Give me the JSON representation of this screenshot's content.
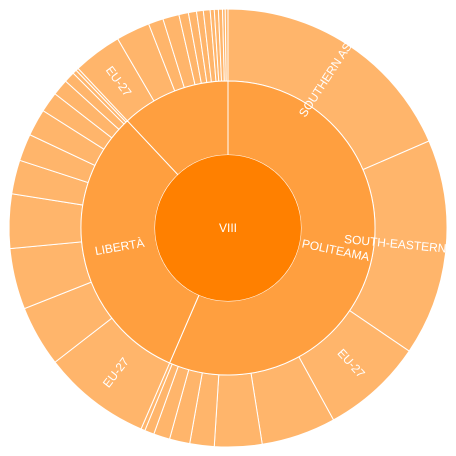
{
  "chart_data": {
    "type": "sunburst",
    "colors": {
      "root": "#ff8000",
      "level1": "#ff9f3f",
      "level2": "#ffb56b"
    },
    "root": {
      "label": "VIII",
      "value": 100,
      "children": [
        {
          "label": "POLITEAMA",
          "value": 56.5,
          "children": [
            {
              "label": "SOUTHERN ASIA",
              "value": 18.5
            },
            {
              "label": "SOUTH-EASTERN ASIA",
              "value": 16.0
            },
            {
              "label": "EU-27",
              "value": 7.5
            },
            {
              "label": "",
              "value": 5.5
            },
            {
              "label": "",
              "value": 3.5
            },
            {
              "label": "",
              "value": 1.8
            },
            {
              "label": "",
              "value": 1.5
            },
            {
              "label": "",
              "value": 1.2
            },
            {
              "label": "",
              "value": 0.7
            },
            {
              "label": "",
              "value": 0.3
            }
          ]
        },
        {
          "label": "LIBERTÀ",
          "value": 31.5,
          "children": [
            {
              "label": "EU-27",
              "value": 8.0
            },
            {
              "label": "",
              "value": 4.5
            },
            {
              "label": "",
              "value": 4.5
            },
            {
              "label": "",
              "value": 4.0
            },
            {
              "label": "",
              "value": 2.5
            },
            {
              "label": "",
              "value": 2.0
            },
            {
              "label": "",
              "value": 2.0
            },
            {
              "label": "",
              "value": 1.5
            },
            {
              "label": "",
              "value": 1.2
            },
            {
              "label": "",
              "value": 0.8
            },
            {
              "label": "",
              "value": 0.3
            },
            {
              "label": "",
              "value": 0.2
            }
          ]
        },
        {
          "label": "",
          "value": 12.0,
          "children": [
            {
              "label": "EU-27",
              "value": 3.6
            },
            {
              "label": "",
              "value": 2.5
            },
            {
              "label": "",
              "value": 1.1
            },
            {
              "label": "",
              "value": 1.2
            },
            {
              "label": "",
              "value": 0.7
            },
            {
              "label": "",
              "value": 0.6
            },
            {
              "label": "",
              "value": 0.5
            },
            {
              "label": "",
              "value": 0.5
            },
            {
              "label": "",
              "value": 0.3
            },
            {
              "label": "",
              "value": 0.3
            },
            {
              "label": "",
              "value": 0.3
            },
            {
              "label": "",
              "value": 0.2
            },
            {
              "label": "",
              "value": 0.2
            }
          ]
        }
      ]
    }
  }
}
